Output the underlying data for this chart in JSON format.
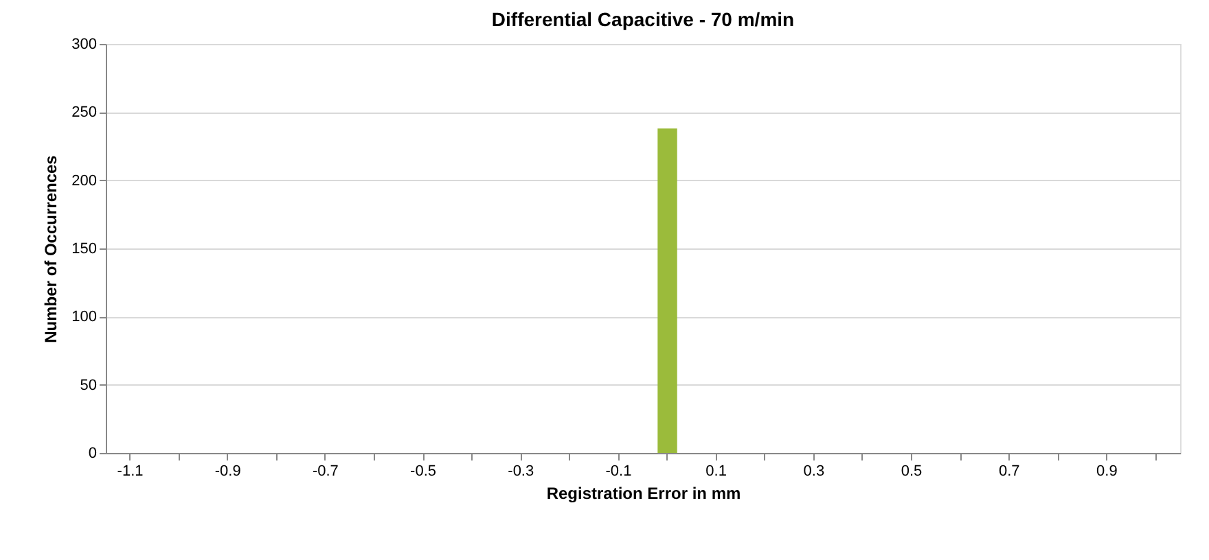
{
  "chart_data": {
    "type": "bar",
    "title": "Differential Capacitive - 70 m/min",
    "xlabel": "Registration Error in mm",
    "ylabel": "Number of Occurrences",
    "categories": [
      "-1.1",
      null,
      "-0.9",
      null,
      "-0.7",
      null,
      "-0.5",
      null,
      "-0.3",
      null,
      "-0.1",
      null,
      "0.1",
      null,
      "0.3",
      null,
      "0.5",
      null,
      "0.7",
      null,
      "0.9",
      null
    ],
    "values": [
      0,
      0,
      0,
      0,
      0,
      0,
      0,
      0,
      0,
      0,
      0,
      238,
      0,
      0,
      0,
      0,
      0,
      0,
      0,
      0,
      0,
      0
    ],
    "color": "#9bbb3b",
    "ylim": [
      0,
      300
    ],
    "yticks": [
      0,
      50,
      100,
      150,
      200,
      250,
      300
    ],
    "grid": "y"
  }
}
